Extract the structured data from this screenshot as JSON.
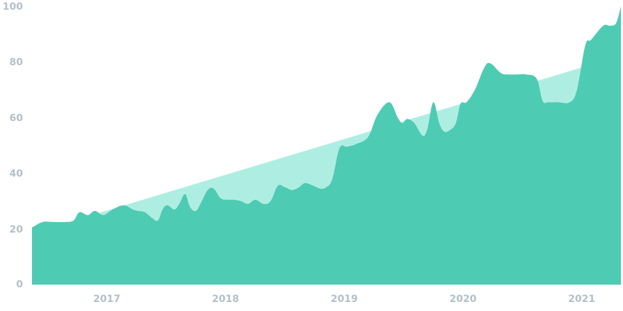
{
  "chart_data": {
    "type": "area",
    "title": "",
    "xlabel": "",
    "ylabel": "",
    "xlim": [
      2016.37,
      2021.33
    ],
    "ylim": [
      0,
      100
    ],
    "grid": false,
    "legend": "none",
    "y_ticks": [
      {
        "value": 0,
        "label": "0"
      },
      {
        "value": 20,
        "label": "20"
      },
      {
        "value": 40,
        "label": "40"
      },
      {
        "value": 60,
        "label": "60"
      },
      {
        "value": 80,
        "label": "80"
      },
      {
        "value": 100,
        "label": "100"
      }
    ],
    "x_ticks": [
      {
        "value": 2017,
        "label": "2017"
      },
      {
        "value": 2018,
        "label": "2018"
      },
      {
        "value": 2019,
        "label": "2019"
      },
      {
        "value": 2020,
        "label": "2020"
      },
      {
        "value": 2021,
        "label": "2021"
      }
    ],
    "series": [
      {
        "role": "trend",
        "color": "#aeeee2",
        "x": [
          2016.37,
          2021.0
        ],
        "y": [
          18.5,
          78.0
        ]
      },
      {
        "role": "main",
        "color": "#4ecbb3",
        "x": [
          2016.37,
          2016.46,
          2016.55,
          2016.66,
          2016.72,
          2016.77,
          2016.84,
          2016.9,
          2016.97,
          2017.05,
          2017.14,
          2017.22,
          2017.26,
          2017.32,
          2017.38,
          2017.43,
          2017.47,
          2017.51,
          2017.57,
          2017.61,
          2017.66,
          2017.7,
          2017.75,
          2017.8,
          2017.85,
          2017.9,
          2017.96,
          2018.02,
          2018.07,
          2018.13,
          2018.19,
          2018.25,
          2018.32,
          2018.38,
          2018.44,
          2018.5,
          2018.56,
          2018.62,
          2018.67,
          2018.74,
          2018.8,
          2018.85,
          2018.9,
          2018.96,
          2019.02,
          2019.07,
          2019.1,
          2019.2,
          2019.28,
          2019.38,
          2019.45,
          2019.49,
          2019.53,
          2019.59,
          2019.66,
          2019.7,
          2019.75,
          2019.8,
          2019.84,
          2019.89,
          2019.94,
          2019.98,
          2020.03,
          2020.1,
          2020.18,
          2020.23,
          2020.32,
          2020.38,
          2020.46,
          2020.53,
          2020.62,
          2020.67,
          2020.72,
          2020.8,
          2020.9,
          2020.96,
          2021.03,
          2021.08,
          2021.18,
          2021.24,
          2021.29,
          2021.33
        ],
        "y": [
          20.5,
          22.5,
          22.5,
          22.5,
          23.0,
          26.0,
          25.0,
          26.5,
          25.0,
          27.0,
          28.5,
          27.0,
          26.5,
          26.0,
          24.0,
          23.0,
          27.0,
          28.5,
          27.0,
          29.0,
          32.5,
          28.0,
          26.5,
          30.0,
          34.0,
          34.5,
          31.0,
          30.5,
          30.5,
          30.0,
          29.0,
          30.5,
          29.0,
          30.0,
          35.5,
          35.0,
          34.0,
          35.0,
          36.5,
          35.5,
          34.5,
          35.0,
          38.0,
          49.0,
          49.5,
          50.0,
          50.5,
          53.0,
          61.0,
          65.5,
          60.0,
          58.0,
          59.5,
          58.0,
          53.5,
          56.0,
          65.5,
          58.0,
          55.0,
          55.5,
          58.0,
          65.0,
          65.5,
          70.0,
          78.0,
          79.5,
          76.0,
          75.5,
          75.5,
          75.5,
          74.0,
          66.0,
          65.5,
          65.5,
          65.5,
          70.0,
          86.0,
          88.0,
          93.0,
          93.0,
          94.0,
          100.0
        ]
      }
    ]
  }
}
